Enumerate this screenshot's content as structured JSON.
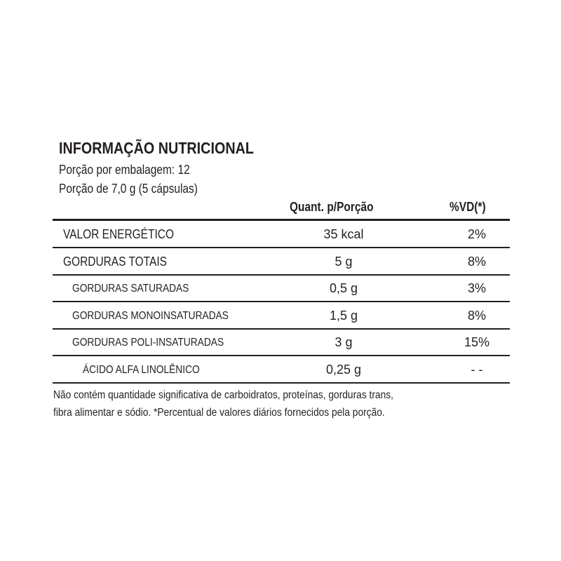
{
  "title": "INFORMAÇÃO NUTRICIONAL",
  "servings_per_package": "Porção por embalagem: 12",
  "serving_size": "Porção de 7,0 g (5 cápsulas)",
  "columns": {
    "quantity": "Quant. p/Porção",
    "daily_value": "%VD(*)"
  },
  "rows": [
    {
      "label": "VALOR ENERGÉTICO",
      "quantity": "35 kcal",
      "dv": "2%"
    },
    {
      "label": "GORDURAS TOTAIS",
      "quantity": "5 g",
      "dv": "8%"
    },
    {
      "label": "GORDURAS SATURADAS",
      "quantity": "0,5 g",
      "dv": "3%"
    },
    {
      "label": "GORDURAS MONOINSATURADAS",
      "quantity": "1,5 g",
      "dv": "8%"
    },
    {
      "label": "GORDURAS POLI-INSATURADAS",
      "quantity": "3 g",
      "dv": "15%"
    },
    {
      "label": "ÁCIDO ALFA LINOLÊNICO",
      "quantity": "0,25 g",
      "dv": "- -"
    }
  ],
  "footer": [
    "Não contém quantidade significativa de carboidratos, proteínas, gorduras trans,",
    "fibra alimentar e sódio. *Percentual de valores diários fornecidos pela porção."
  ]
}
